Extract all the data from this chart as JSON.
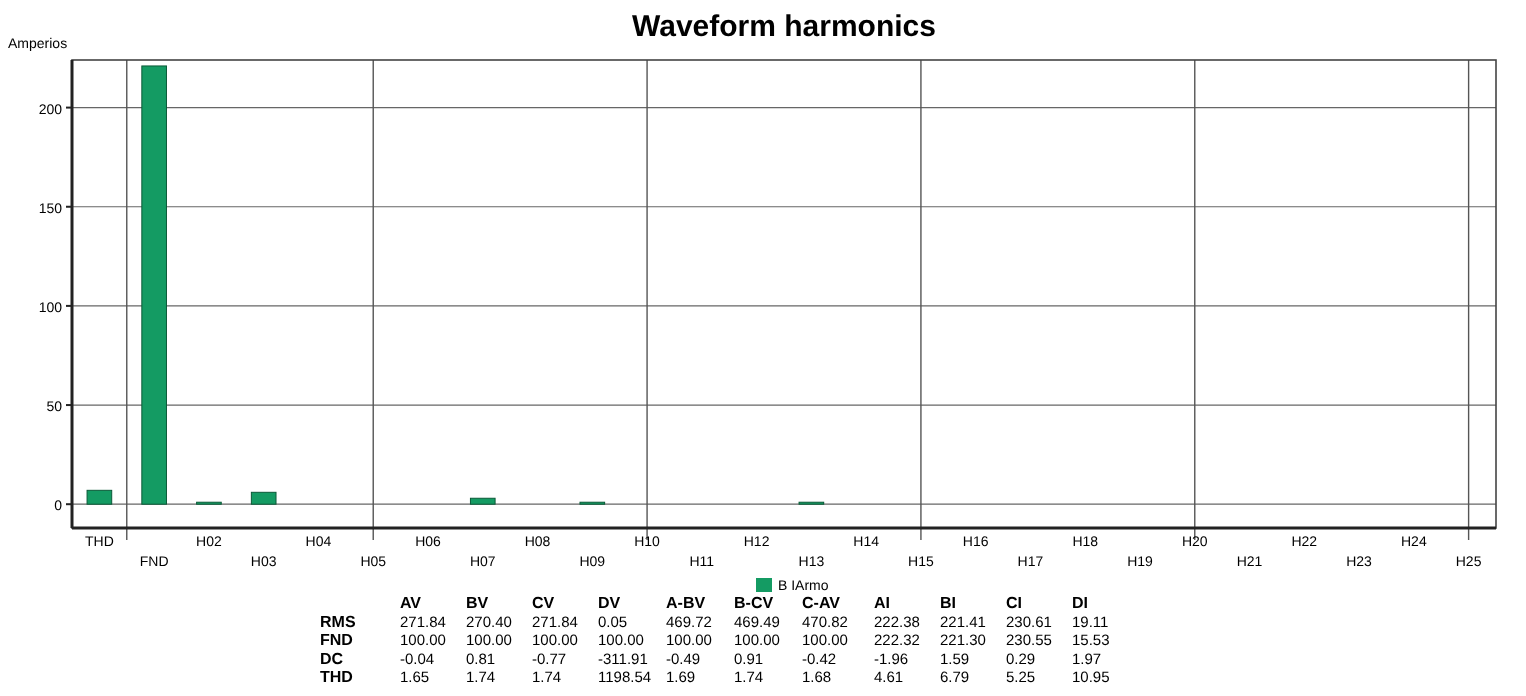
{
  "chart_data": {
    "type": "bar",
    "title": "Waveform harmonics",
    "ylabel": "Amperios",
    "categories": [
      "THD",
      "FND",
      "H02",
      "H03",
      "H04",
      "H05",
      "H06",
      "H07",
      "H08",
      "H09",
      "H10",
      "H11",
      "H12",
      "H13",
      "H14",
      "H15",
      "H16",
      "H17",
      "H18",
      "H19",
      "H20",
      "H21",
      "H22",
      "H23",
      "H24",
      "H25"
    ],
    "series": [
      {
        "name": "B IArmo",
        "color": "#149b63",
        "values": [
          7,
          221,
          1,
          6,
          0,
          0,
          0,
          3,
          0,
          1,
          0,
          0,
          0,
          1,
          0,
          0,
          0,
          0,
          0,
          0,
          0,
          0,
          0,
          0,
          0,
          0
        ]
      }
    ],
    "ylim": [
      -12,
      224
    ],
    "yticks": [
      0,
      50,
      100,
      150,
      200
    ],
    "grid": true,
    "legend": "bottom",
    "annotations": [
      "AV BV CV DV A-BV B-CV C-AV AI BI CI DI",
      "RMS 271.84 270.40 271.84 0.05 469.72 469.49 470.82 222.38 221.41 230.61 19.11",
      "FND 100.00 100.00 100.00 100.00 100.00 100.00 100.00 222.32 221.30 230.55 15.53",
      "DC -0.04 0.81 -0.77 -311.91 -0.49 0.91 -0.42 -1.96 1.59 0.29 1.97",
      "THD 1.65 1.74 1.74 1198.54 1.69 1.74 1.68 4.61 6.79 5.25 10.95"
    ]
  }
}
